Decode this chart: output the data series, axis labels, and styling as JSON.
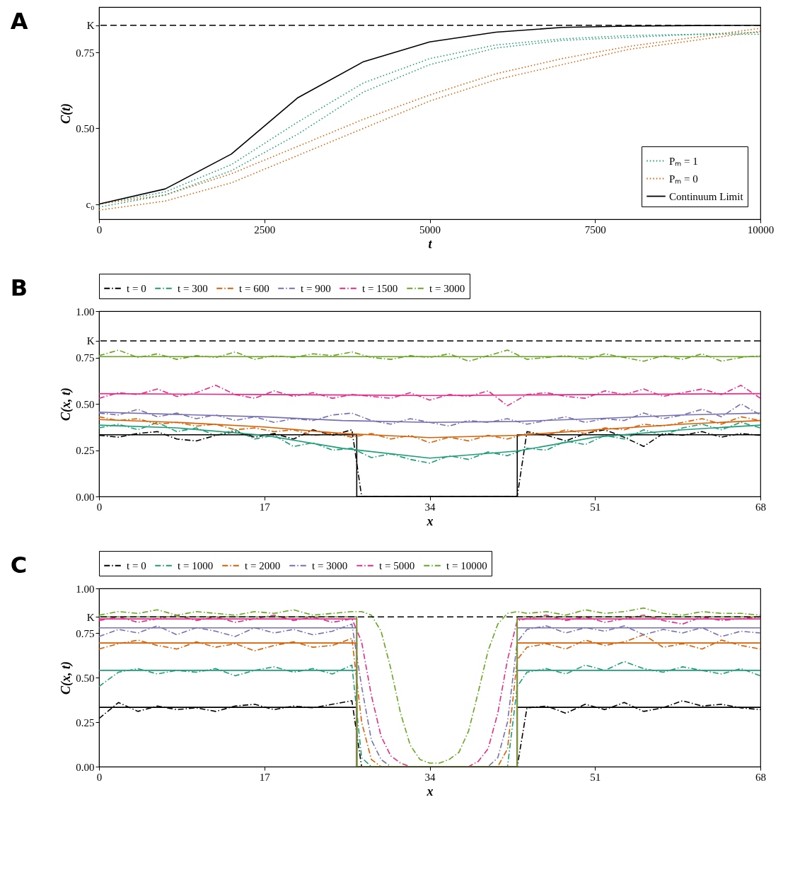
{
  "chart_data": [
    {
      "type": "line",
      "annotations": [
        "A"
      ],
      "xlabel": "t",
      "ylabel": "C(t)",
      "xlim": [
        0,
        10000
      ],
      "xticks": [
        0,
        2500,
        5000,
        7500,
        10000
      ],
      "ylim": [
        0.2,
        0.9
      ],
      "yticks": [
        {
          "value": 0.25,
          "label": "c₀"
        },
        {
          "value": 0.5,
          "label": "0.50"
        },
        {
          "value": 0.75,
          "label": "0.75"
        },
        {
          "value": 0.84,
          "label": "K"
        }
      ],
      "legend": "bottom right",
      "x": [
        0,
        1000,
        2000,
        3000,
        4000,
        5000,
        6000,
        7000,
        8000,
        9000,
        10000
      ],
      "series": [
        {
          "name": "Pₘ = 1",
          "color": "#1b9e77",
          "line_style": "dotted",
          "values": [
            0.25,
            0.29,
            0.38,
            0.52,
            0.65,
            0.73,
            0.775,
            0.795,
            0.806,
            0.81,
            0.817
          ]
        },
        {
          "color": "#1b9e77",
          "line_style": "dotted",
          "values": [
            0.24,
            0.28,
            0.36,
            0.48,
            0.62,
            0.71,
            0.765,
            0.79,
            0.8,
            0.81,
            0.81
          ]
        },
        {
          "name": "Pₘ = 0",
          "color": "#d95f02",
          "line_style": "dotted",
          "values": [
            0.25,
            0.28,
            0.35,
            0.44,
            0.53,
            0.61,
            0.68,
            0.73,
            0.77,
            0.8,
            0.83
          ]
        },
        {
          "color": "#d95f02",
          "line_style": "dotted",
          "values": [
            0.23,
            0.26,
            0.32,
            0.41,
            0.5,
            0.59,
            0.66,
            0.71,
            0.76,
            0.79,
            0.82
          ]
        },
        {
          "name": "Continuum Limit",
          "color": "#000000",
          "line_style": "solid",
          "values": [
            0.25,
            0.3,
            0.415,
            0.6,
            0.72,
            0.785,
            0.817,
            0.833,
            0.837,
            0.839,
            0.84
          ]
        }
      ],
      "ref_lines": [
        {
          "axis": "y",
          "value": 0.84,
          "color": "#000000",
          "line_style": "dashed"
        }
      ]
    },
    {
      "type": "line",
      "annotations": [
        "B"
      ],
      "xlabel": "x",
      "ylabel": "C(x, t)",
      "xlim": [
        0,
        68
      ],
      "xticks": [
        0,
        17,
        34,
        51,
        68
      ],
      "ylim": [
        0,
        1
      ],
      "yticks": [
        {
          "value": 0,
          "label": "0.00"
        },
        {
          "value": 0.25,
          "label": "0.25"
        },
        {
          "value": 0.5,
          "label": "0.50"
        },
        {
          "value": 0.75,
          "label": "0.75"
        },
        {
          "value": 0.84,
          "label": "K"
        },
        {
          "value": 1,
          "label": "1.00"
        }
      ],
      "legend": "top",
      "x": [
        0,
        2,
        4,
        6,
        8,
        10,
        12,
        14,
        16,
        18,
        20,
        22,
        24,
        26,
        28,
        30,
        32,
        34,
        36,
        38,
        40,
        42,
        44,
        46,
        48,
        50,
        52,
        54,
        56,
        58,
        60,
        62,
        64,
        66,
        68
      ],
      "series": [
        {
          "name": "t = 0",
          "color": "#000000",
          "line_style": "dashdot",
          "x": [
            0,
            2,
            4,
            6,
            8,
            10,
            12,
            14,
            16,
            18,
            20,
            22,
            24,
            26,
            27,
            43,
            44,
            46,
            48,
            50,
            52,
            54,
            56,
            58,
            60,
            62,
            64,
            66,
            68
          ],
          "values": [
            0.33,
            0.32,
            0.34,
            0.35,
            0.31,
            0.3,
            0.33,
            0.35,
            0.32,
            0.34,
            0.31,
            0.36,
            0.33,
            0.36,
            0,
            0,
            0.35,
            0.33,
            0.3,
            0.34,
            0.36,
            0.32,
            0.27,
            0.34,
            0.33,
            0.35,
            0.32,
            0.34,
            0.33
          ]
        },
        {
          "name": "t = 300",
          "color": "#1b9e77",
          "line_style": "dashdot",
          "values": [
            0.37,
            0.39,
            0.36,
            0.4,
            0.35,
            0.37,
            0.33,
            0.36,
            0.31,
            0.33,
            0.27,
            0.29,
            0.25,
            0.26,
            0.21,
            0.23,
            0.2,
            0.18,
            0.22,
            0.2,
            0.24,
            0.22,
            0.26,
            0.25,
            0.3,
            0.28,
            0.33,
            0.31,
            0.36,
            0.33,
            0.37,
            0.39,
            0.36,
            0.4,
            0.37
          ]
        },
        {
          "name": "t = 600",
          "color": "#d95f02",
          "line_style": "dashdot",
          "values": [
            0.43,
            0.41,
            0.42,
            0.39,
            0.4,
            0.38,
            0.39,
            0.36,
            0.37,
            0.35,
            0.36,
            0.33,
            0.34,
            0.32,
            0.34,
            0.31,
            0.33,
            0.29,
            0.32,
            0.3,
            0.33,
            0.31,
            0.34,
            0.33,
            0.36,
            0.34,
            0.37,
            0.36,
            0.39,
            0.38,
            0.4,
            0.42,
            0.39,
            0.43,
            0.41
          ]
        },
        {
          "name": "t = 900",
          "color": "#7570b3",
          "line_style": "dashdot",
          "values": [
            0.45,
            0.44,
            0.47,
            0.43,
            0.45,
            0.42,
            0.44,
            0.41,
            0.43,
            0.4,
            0.42,
            0.41,
            0.44,
            0.45,
            0.41,
            0.39,
            0.42,
            0.4,
            0.38,
            0.41,
            0.4,
            0.42,
            0.39,
            0.41,
            0.43,
            0.4,
            0.42,
            0.41,
            0.45,
            0.42,
            0.44,
            0.47,
            0.43,
            0.5,
            0.44
          ]
        },
        {
          "name": "t = 1500",
          "color": "#e7298a",
          "line_style": "dashdot",
          "values": [
            0.53,
            0.56,
            0.55,
            0.58,
            0.54,
            0.56,
            0.6,
            0.55,
            0.53,
            0.57,
            0.54,
            0.56,
            0.53,
            0.55,
            0.54,
            0.53,
            0.56,
            0.52,
            0.55,
            0.54,
            0.57,
            0.49,
            0.55,
            0.56,
            0.54,
            0.53,
            0.57,
            0.55,
            0.58,
            0.54,
            0.56,
            0.58,
            0.55,
            0.6,
            0.53
          ]
        },
        {
          "name": "t = 3000",
          "color": "#66a61e",
          "line_style": "dashdot",
          "values": [
            0.76,
            0.79,
            0.75,
            0.77,
            0.74,
            0.76,
            0.75,
            0.78,
            0.74,
            0.76,
            0.75,
            0.77,
            0.76,
            0.78,
            0.75,
            0.74,
            0.76,
            0.75,
            0.77,
            0.73,
            0.76,
            0.79,
            0.74,
            0.75,
            0.76,
            0.74,
            0.77,
            0.75,
            0.73,
            0.76,
            0.74,
            0.77,
            0.73,
            0.75,
            0.76
          ]
        },
        {
          "color": "#000000",
          "line_style": "solid",
          "x": [
            0,
            26.5,
            26.5,
            43,
            43,
            68
          ],
          "values": [
            0.333,
            0.333,
            0,
            0,
            0.333,
            0.333
          ]
        },
        {
          "color": "#1b9e77",
          "line_style": "solid",
          "x": [
            0,
            8,
            17,
            25,
            34,
            43,
            51,
            60,
            68
          ],
          "values": [
            0.385,
            0.37,
            0.33,
            0.26,
            0.207,
            0.245,
            0.32,
            0.36,
            0.385
          ]
        },
        {
          "color": "#d95f02",
          "line_style": "solid",
          "x": [
            0,
            8,
            17,
            25,
            34,
            43,
            51,
            60,
            68
          ],
          "values": [
            0.415,
            0.4,
            0.375,
            0.34,
            0.318,
            0.33,
            0.36,
            0.39,
            0.41
          ]
        },
        {
          "color": "#7570b3",
          "line_style": "solid",
          "x": [
            0,
            10,
            17,
            25,
            34,
            43,
            51,
            60,
            68
          ],
          "values": [
            0.455,
            0.44,
            0.43,
            0.41,
            0.4,
            0.405,
            0.42,
            0.44,
            0.45
          ]
        },
        {
          "color": "#e7298a",
          "line_style": "solid",
          "x": [
            0,
            17,
            34,
            51,
            68
          ],
          "values": [
            0.555,
            0.55,
            0.545,
            0.55,
            0.555
          ]
        },
        {
          "color": "#66a61e",
          "line_style": "solid",
          "x": [
            0,
            68
          ],
          "values": [
            0.755,
            0.755
          ]
        }
      ],
      "ref_lines": [
        {
          "axis": "y",
          "value": 0.84,
          "color": "#000000",
          "line_style": "dashed"
        }
      ]
    },
    {
      "type": "line",
      "annotations": [
        "C"
      ],
      "xlabel": "x",
      "ylabel": "C(x, t)",
      "xlim": [
        0,
        68
      ],
      "xticks": [
        0,
        17,
        34,
        51,
        68
      ],
      "ylim": [
        0,
        1
      ],
      "yticks": [
        {
          "value": 0,
          "label": "0.00"
        },
        {
          "value": 0.25,
          "label": "0.25"
        },
        {
          "value": 0.5,
          "label": "0.50"
        },
        {
          "value": 0.75,
          "label": "0.75"
        },
        {
          "value": 0.84,
          "label": "K"
        },
        {
          "value": 1,
          "label": "1.00"
        }
      ],
      "legend": "top",
      "series": [
        {
          "name": "t = 0",
          "color": "#000000",
          "line_style": "dashdot",
          "x": [
            0,
            2,
            4,
            6,
            8,
            10,
            12,
            14,
            16,
            18,
            20,
            22,
            24,
            26,
            27,
            43,
            44,
            46,
            48,
            50,
            52,
            54,
            56,
            58,
            60,
            62,
            64,
            66,
            68
          ],
          "values": [
            0.27,
            0.36,
            0.31,
            0.34,
            0.32,
            0.33,
            0.31,
            0.34,
            0.35,
            0.32,
            0.34,
            0.33,
            0.35,
            0.37,
            0,
            0,
            0.33,
            0.34,
            0.3,
            0.35,
            0.32,
            0.36,
            0.31,
            0.33,
            0.37,
            0.34,
            0.35,
            0.33,
            0.32
          ]
        },
        {
          "name": "t = 1000",
          "color": "#1b9e77",
          "line_style": "dashdot",
          "x": [
            0,
            2,
            4,
            6,
            8,
            10,
            12,
            14,
            16,
            18,
            20,
            22,
            24,
            26,
            27,
            28,
            42,
            43,
            44,
            46,
            48,
            50,
            52,
            54,
            56,
            58,
            60,
            62,
            64,
            66,
            68
          ],
          "values": [
            0.45,
            0.53,
            0.55,
            0.52,
            0.54,
            0.53,
            0.55,
            0.51,
            0.54,
            0.56,
            0.53,
            0.55,
            0.52,
            0.57,
            0.05,
            0,
            0,
            0.45,
            0.53,
            0.55,
            0.52,
            0.57,
            0.54,
            0.59,
            0.55,
            0.53,
            0.56,
            0.54,
            0.52,
            0.55,
            0.51
          ]
        },
        {
          "name": "t = 2000",
          "color": "#d95f02",
          "line_style": "dashdot",
          "x": [
            0,
            2,
            4,
            6,
            8,
            10,
            12,
            14,
            16,
            18,
            20,
            22,
            24,
            26,
            27,
            28,
            29,
            41,
            42,
            43,
            44,
            46,
            48,
            50,
            52,
            54,
            56,
            58,
            60,
            62,
            64,
            66,
            68
          ],
          "values": [
            0.66,
            0.69,
            0.71,
            0.68,
            0.66,
            0.7,
            0.67,
            0.69,
            0.65,
            0.68,
            0.7,
            0.67,
            0.68,
            0.72,
            0.25,
            0.04,
            0,
            0,
            0.1,
            0.6,
            0.67,
            0.69,
            0.66,
            0.71,
            0.68,
            0.7,
            0.74,
            0.67,
            0.69,
            0.66,
            0.71,
            0.68,
            0.66
          ]
        },
        {
          "name": "t = 3000",
          "color": "#7570b3",
          "line_style": "dashdot",
          "x": [
            0,
            2,
            4,
            6,
            8,
            10,
            12,
            14,
            16,
            18,
            20,
            22,
            24,
            26,
            27,
            28,
            29,
            30,
            40,
            41,
            42,
            43,
            44,
            46,
            48,
            50,
            52,
            54,
            56,
            58,
            60,
            62,
            64,
            66,
            68
          ],
          "values": [
            0.73,
            0.77,
            0.75,
            0.79,
            0.74,
            0.78,
            0.76,
            0.73,
            0.78,
            0.75,
            0.77,
            0.74,
            0.76,
            0.8,
            0.45,
            0.15,
            0.04,
            0,
            0,
            0.05,
            0.25,
            0.7,
            0.77,
            0.79,
            0.75,
            0.78,
            0.76,
            0.79,
            0.74,
            0.77,
            0.75,
            0.78,
            0.73,
            0.76,
            0.75
          ]
        },
        {
          "name": "t = 5000",
          "color": "#e7298a",
          "line_style": "dashdot",
          "x": [
            0,
            2,
            4,
            6,
            8,
            10,
            12,
            14,
            16,
            18,
            20,
            22,
            24,
            26,
            27,
            28,
            29,
            30,
            31,
            32,
            38,
            39,
            40,
            41,
            42,
            43,
            44,
            46,
            48,
            50,
            52,
            54,
            56,
            58,
            60,
            62,
            64,
            66,
            68
          ],
          "values": [
            0.82,
            0.84,
            0.81,
            0.83,
            0.85,
            0.82,
            0.84,
            0.81,
            0.83,
            0.85,
            0.82,
            0.84,
            0.81,
            0.83,
            0.7,
            0.4,
            0.17,
            0.06,
            0.02,
            0,
            0,
            0.03,
            0.1,
            0.3,
            0.6,
            0.82,
            0.83,
            0.85,
            0.82,
            0.84,
            0.81,
            0.83,
            0.85,
            0.82,
            0.8,
            0.84,
            0.82,
            0.83,
            0.84
          ]
        },
        {
          "name": "t = 10000",
          "color": "#66a61e",
          "line_style": "dashdot",
          "x": [
            0,
            2,
            4,
            6,
            8,
            10,
            12,
            14,
            16,
            18,
            20,
            22,
            24,
            26,
            27,
            28,
            29,
            30,
            31,
            32,
            33,
            34,
            35,
            36,
            37,
            38,
            39,
            40,
            41,
            42,
            43,
            44,
            46,
            48,
            50,
            52,
            54,
            56,
            58,
            60,
            62,
            64,
            66,
            68
          ],
          "values": [
            0.85,
            0.87,
            0.86,
            0.88,
            0.85,
            0.87,
            0.86,
            0.85,
            0.87,
            0.86,
            0.88,
            0.85,
            0.86,
            0.87,
            0.87,
            0.85,
            0.76,
            0.55,
            0.3,
            0.12,
            0.04,
            0.02,
            0.02,
            0.04,
            0.08,
            0.2,
            0.42,
            0.65,
            0.8,
            0.86,
            0.87,
            0.86,
            0.87,
            0.85,
            0.88,
            0.86,
            0.87,
            0.89,
            0.86,
            0.85,
            0.87,
            0.86,
            0.86,
            0.85
          ]
        },
        {
          "color": "#000000",
          "line_style": "solid",
          "x": [
            0,
            26.5,
            26.5,
            43,
            43,
            68
          ],
          "values": [
            0.333,
            0.333,
            0,
            0,
            0.333,
            0.333
          ]
        },
        {
          "color": "#1b9e77",
          "line_style": "solid",
          "x": [
            0,
            26.5,
            26.5,
            43,
            43,
            68
          ],
          "values": [
            0.54,
            0.54,
            0,
            0,
            0.54,
            0.54
          ]
        },
        {
          "color": "#d95f02",
          "line_style": "solid",
          "x": [
            0,
            26.5,
            26.5,
            43,
            43,
            68
          ],
          "values": [
            0.694,
            0.694,
            0,
            0,
            0.694,
            0.694
          ]
        },
        {
          "color": "#7570b3",
          "line_style": "solid",
          "x": [
            0,
            26.5,
            26.5,
            43,
            43,
            68
          ],
          "values": [
            0.779,
            0.779,
            0,
            0,
            0.779,
            0.779
          ]
        },
        {
          "color": "#e7298a",
          "line_style": "solid",
          "x": [
            0,
            26.5,
            26.5,
            43,
            43,
            68
          ],
          "values": [
            0.829,
            0.829,
            0,
            0,
            0.829,
            0.829
          ]
        },
        {
          "color": "#66a61e",
          "line_style": "solid",
          "x": [
            0,
            26.5,
            26.5,
            43,
            43,
            68
          ],
          "values": [
            0.84,
            0.84,
            0,
            0,
            0.84,
            0.84
          ]
        }
      ],
      "ref_lines": [
        {
          "axis": "y",
          "value": 0.84,
          "color": "#000000",
          "line_style": "dashed"
        }
      ]
    }
  ]
}
